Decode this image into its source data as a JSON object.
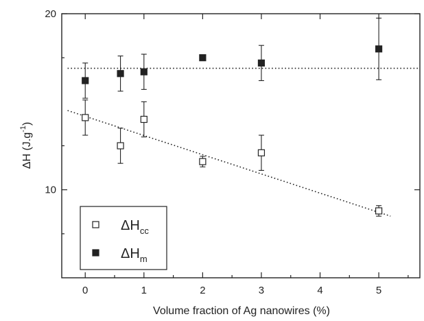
{
  "chart_data": {
    "type": "scatter",
    "xlabel": "Volume fraction of Ag nanowires (%)",
    "ylabel_main": "ΔH (J.g",
    "ylabel_sup": "-1",
    "ylabel_close": ")",
    "xlim": [
      -0.4,
      5.7
    ],
    "ylim": [
      5,
      20
    ],
    "x_ticks": [
      0,
      1,
      2,
      3,
      4,
      5
    ],
    "y_ticks": [
      10,
      20
    ],
    "grid": false,
    "legend_position": "bottom-left",
    "series": [
      {
        "name": "ΔH",
        "name_sub": "cc",
        "marker": "open-square",
        "color": "#222222",
        "x": [
          0,
          0.6,
          1,
          2,
          3,
          5
        ],
        "y": [
          14.1,
          12.5,
          14.0,
          11.6,
          12.1,
          8.8
        ],
        "err": [
          1.0,
          1.0,
          1.0,
          0.3,
          1.0,
          0.3
        ],
        "trend": {
          "x": [
            -0.3,
            5.2
          ],
          "y": [
            14.5,
            8.5
          ]
        }
      },
      {
        "name": "ΔH",
        "name_sub": "m",
        "marker": "filled-square",
        "color": "#222222",
        "x": [
          0,
          0.6,
          1,
          2,
          3,
          5
        ],
        "y": [
          16.2,
          16.6,
          16.7,
          17.5,
          17.2,
          18.0
        ],
        "err": [
          1.0,
          1.0,
          1.0,
          0.15,
          1.0,
          1.75
        ],
        "trend": {
          "x": [
            -0.3,
            5.7
          ],
          "y": [
            16.9,
            16.9
          ]
        }
      }
    ]
  }
}
